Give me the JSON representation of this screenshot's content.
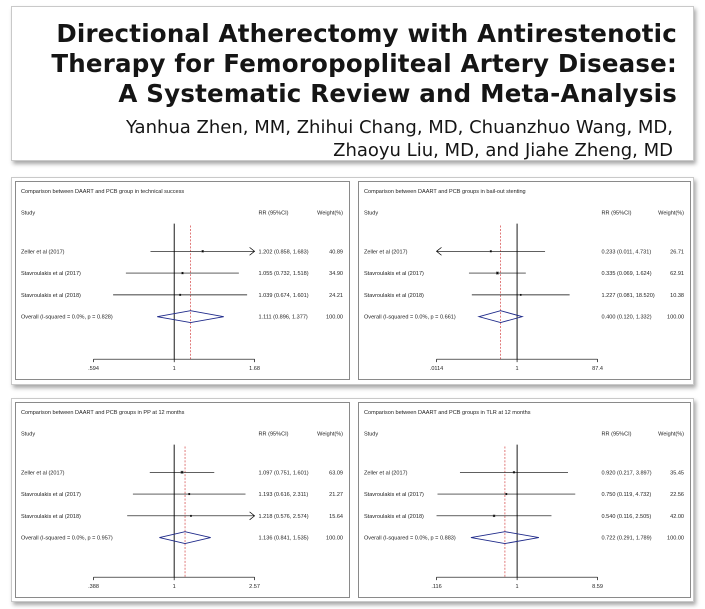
{
  "title": {
    "line1": "Directional Atherectomy with Antirestenotic",
    "line2": "Therapy for Femoropopliteal Artery Disease:",
    "line3": "A Systematic Review and Meta-Analysis",
    "authors1": "Yanhua Zhen, MM, Zhihui Chang, MD, Chuanzhuo Wang, MD,",
    "authors2": "Zhaoyu Liu, MD, and Jiahe Zheng, MD"
  },
  "chart_data": [
    {
      "type": "forest",
      "title": "Comparison between DAART and PCB group in technical success",
      "header": {
        "study": "Study",
        "rr": "RR (95%CI)",
        "weight": "Weight(%)"
      },
      "scale": "log",
      "xlim": [
        0.594,
        1.68
      ],
      "ticks": [
        ".594",
        "1",
        "1.68"
      ],
      "tick_values": [
        0.594,
        1,
        1.68
      ],
      "rows": [
        {
          "study": "Zeller et al (2017)",
          "rr": 1.202,
          "lo": 0.858,
          "hi": 1.683,
          "ci_text": "1.202 (0.858, 1.683)",
          "weight": "40.89"
        },
        {
          "study": "Stavroulakis et al (2017)",
          "rr": 1.055,
          "lo": 0.732,
          "hi": 1.518,
          "ci_text": "1.055 (0.732, 1.518)",
          "weight": "34.90"
        },
        {
          "study": "Stavroulakis et al (2018)",
          "rr": 1.039,
          "lo": 0.674,
          "hi": 1.601,
          "ci_text": "1.039 (0.674, 1.601)",
          "weight": "24.21"
        }
      ],
      "overall": {
        "label": "Overall  (I-squared = 0.0%, p = 0.828)",
        "rr": 1.111,
        "lo": 0.896,
        "hi": 1.377,
        "ci_text": "1.111 (0.896, 1.377)",
        "weight": "100.00"
      }
    },
    {
      "type": "forest",
      "title": "Comparison between DAART and PCB groups in bail-out stenting",
      "header": {
        "study": "Study",
        "rr": "RR (95%CI)",
        "weight": "Weight(%)"
      },
      "scale": "log",
      "xlim": [
        0.0114,
        87.4
      ],
      "ticks": [
        ".0114",
        "1",
        "87.4"
      ],
      "tick_values": [
        0.0114,
        1,
        87.4
      ],
      "rows": [
        {
          "study": "Zeller et al (2017)",
          "rr": 0.233,
          "lo": 0.011,
          "hi": 4.731,
          "ci_text": "0.233 (0.011, 4.731)",
          "weight": "26.71"
        },
        {
          "study": "Stavroulakis et al (2017)",
          "rr": 0.335,
          "lo": 0.069,
          "hi": 1.624,
          "ci_text": "0.335 (0.069, 1.624)",
          "weight": "62.91"
        },
        {
          "study": "Stavroulakis et al (2018)",
          "rr": 1.227,
          "lo": 0.081,
          "hi": 18.52,
          "ci_text": "1.227 (0.081, 18.520)",
          "weight": "10.38"
        }
      ],
      "overall": {
        "label": "Overall  (I-squared = 0.0%, p = 0.661)",
        "rr": 0.4,
        "lo": 0.12,
        "hi": 1.332,
        "ci_text": "0.400 (0.120, 1.332)",
        "weight": "100.00"
      }
    },
    {
      "type": "forest",
      "title": "Comparison between DAART and PCB groups in PP at 12 months",
      "header": {
        "study": "Study",
        "rr": "RR (95%CI)",
        "weight": "Weight(%)"
      },
      "scale": "log",
      "xlim": [
        0.388,
        2.57
      ],
      "ticks": [
        ".388",
        "1",
        "2.57"
      ],
      "tick_values": [
        0.388,
        1,
        2.57
      ],
      "rows": [
        {
          "study": "Zeller et al (2017)",
          "rr": 1.097,
          "lo": 0.751,
          "hi": 1.601,
          "ci_text": "1.097 (0.751, 1.601)",
          "weight": "63.09"
        },
        {
          "study": "Stavroulakis et al (2017)",
          "rr": 1.193,
          "lo": 0.616,
          "hi": 2.311,
          "ci_text": "1.193 (0.616, 2.311)",
          "weight": "21.27"
        },
        {
          "study": "Stavroulakis et al (2018)",
          "rr": 1.218,
          "lo": 0.576,
          "hi": 2.574,
          "ci_text": "1.218 (0.576, 2.574)",
          "weight": "15.64"
        }
      ],
      "overall": {
        "label": "Overall  (I-squared = 0.0%, p = 0.957)",
        "rr": 1.136,
        "lo": 0.841,
        "hi": 1.535,
        "ci_text": "1.136 (0.841, 1.535)",
        "weight": "100.00"
      }
    },
    {
      "type": "forest",
      "title": "Comparison between DAART and PCB groups in TLR at 12 months",
      "header": {
        "study": "Study",
        "rr": "RR (95%CI)",
        "weight": "Weight(%)"
      },
      "scale": "log",
      "xlim": [
        0.116,
        8.59
      ],
      "ticks": [
        ".116",
        "1",
        "8.59"
      ],
      "tick_values": [
        0.116,
        1,
        8.59
      ],
      "rows": [
        {
          "study": "Zeller et al (2017)",
          "rr": 0.92,
          "lo": 0.217,
          "hi": 3.897,
          "ci_text": "0.920 (0.217, 3.897)",
          "weight": "35.45"
        },
        {
          "study": "Stavroulakis et al (2017)",
          "rr": 0.75,
          "lo": 0.119,
          "hi": 4.732,
          "ci_text": "0.750 (0.119, 4.732)",
          "weight": "22.56"
        },
        {
          "study": "Stavroulakis et al (2018)",
          "rr": 0.54,
          "lo": 0.116,
          "hi": 2.505,
          "ci_text": "0.540 (0.116, 2.505)",
          "weight": "42.00"
        }
      ],
      "overall": {
        "label": "Overall  (I-squared = 0.0%, p = 0.883)",
        "rr": 0.722,
        "lo": 0.291,
        "hi": 1.789,
        "ci_text": "0.722 (0.291, 1.789)",
        "weight": "100.00"
      }
    }
  ]
}
